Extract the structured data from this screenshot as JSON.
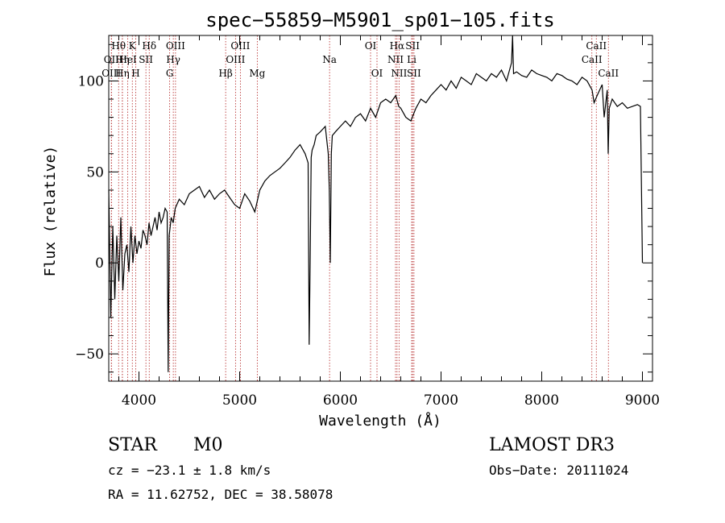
{
  "chart_data": {
    "type": "line",
    "title": "spec−55859−M5901_sp01−105.fits",
    "xlabel": "Wavelength (Å)",
    "ylabel": "Flux (relative)",
    "xlim": [
      3700,
      9100
    ],
    "ylim": [
      -65,
      125
    ],
    "xticks": [
      4000,
      5000,
      6000,
      7000,
      8000,
      9000
    ],
    "yticks": [
      -50,
      0,
      50,
      100
    ],
    "line_color": "#000000",
    "marker_color": "#b22222",
    "series": [
      {
        "name": "flux",
        "x": [
          3700,
          3720,
          3740,
          3760,
          3780,
          3800,
          3820,
          3840,
          3860,
          3880,
          3900,
          3920,
          3940,
          3960,
          3980,
          4000,
          4020,
          4040,
          4060,
          4080,
          4100,
          4120,
          4140,
          4160,
          4180,
          4200,
          4220,
          4240,
          4260,
          4280,
          4290,
          4300,
          4310,
          4320,
          4340,
          4360,
          4400,
          4450,
          4500,
          4550,
          4600,
          4650,
          4700,
          4750,
          4800,
          4850,
          4900,
          4950,
          5000,
          5050,
          5100,
          5150,
          5200,
          5250,
          5300,
          5350,
          5400,
          5450,
          5500,
          5550,
          5600,
          5650,
          5680,
          5690,
          5700,
          5710,
          5720,
          5740,
          5760,
          5800,
          5850,
          5880,
          5890,
          5900,
          5910,
          5920,
          5950,
          6000,
          6050,
          6100,
          6150,
          6200,
          6250,
          6300,
          6350,
          6400,
          6450,
          6500,
          6550,
          6560,
          6580,
          6600,
          6650,
          6700,
          6750,
          6800,
          6850,
          6900,
          6950,
          7000,
          7050,
          7100,
          7150,
          7200,
          7250,
          7300,
          7350,
          7400,
          7450,
          7500,
          7550,
          7600,
          7650,
          7700,
          7710,
          7720,
          7750,
          7800,
          7850,
          7900,
          7950,
          8000,
          8050,
          8100,
          8150,
          8200,
          8250,
          8300,
          8350,
          8400,
          8450,
          8500,
          8520,
          8550,
          8600,
          8620,
          8650,
          8660,
          8670,
          8700,
          8750,
          8800,
          8850,
          8900,
          8950,
          8980,
          9000
        ],
        "y": [
          40,
          -30,
          20,
          -20,
          15,
          -10,
          25,
          -15,
          5,
          10,
          -5,
          20,
          0,
          15,
          5,
          12,
          8,
          18,
          15,
          10,
          22,
          15,
          20,
          25,
          18,
          28,
          22,
          25,
          30,
          28,
          -60,
          15,
          20,
          25,
          22,
          30,
          35,
          32,
          38,
          40,
          42,
          36,
          40,
          35,
          38,
          40,
          36,
          32,
          30,
          38,
          34,
          28,
          40,
          45,
          48,
          50,
          52,
          55,
          58,
          62,
          65,
          60,
          55,
          -45,
          0,
          58,
          62,
          65,
          70,
          72,
          75,
          60,
          40,
          0,
          60,
          70,
          72,
          75,
          78,
          75,
          80,
          82,
          78,
          85,
          80,
          88,
          90,
          88,
          92,
          90,
          86,
          85,
          80,
          78,
          85,
          90,
          88,
          92,
          95,
          98,
          95,
          100,
          96,
          102,
          100,
          98,
          104,
          102,
          100,
          104,
          102,
          106,
          100,
          110,
          125,
          104,
          105,
          103,
          102,
          106,
          104,
          103,
          102,
          100,
          104,
          103,
          101,
          100,
          98,
          102,
          100,
          95,
          88,
          92,
          98,
          80,
          95,
          60,
          85,
          90,
          86,
          88,
          85,
          86,
          87,
          86,
          0
        ]
      }
    ],
    "spectral_lines": [
      {
        "label": "Hθ",
        "wavelength": 3798,
        "row": 0
      },
      {
        "label": "OII",
        "wavelength": 3727,
        "row": 1
      },
      {
        "label": "OIII",
        "wavelength": 3726,
        "row": 2
      },
      {
        "label": "Hη",
        "wavelength": 3835,
        "row": 1
      },
      {
        "label": "Hη",
        "wavelength": 3835,
        "row": 2
      },
      {
        "label": "K",
        "wavelength": 3934,
        "row": 0
      },
      {
        "label": "HeI",
        "wavelength": 3889,
        "row": 1
      },
      {
        "label": "H",
        "wavelength": 3968,
        "row": 2
      },
      {
        "label": "SII",
        "wavelength": 4069,
        "row": 1
      },
      {
        "label": "Hδ",
        "wavelength": 4102,
        "row": 0
      },
      {
        "label": "OIII",
        "wavelength": 4363,
        "row": 0
      },
      {
        "label": "Hγ",
        "wavelength": 4341,
        "row": 1
      },
      {
        "label": "G",
        "wavelength": 4305,
        "row": 2
      },
      {
        "label": "Hβ",
        "wavelength": 4861,
        "row": 2
      },
      {
        "label": "OIII",
        "wavelength": 5007,
        "row": 0
      },
      {
        "label": "OIII",
        "wavelength": 4959,
        "row": 1
      },
      {
        "label": "Mg",
        "wavelength": 5175,
        "row": 2
      },
      {
        "label": "Na",
        "wavelength": 5893,
        "row": 1
      },
      {
        "label": "OI",
        "wavelength": 6300,
        "row": 0
      },
      {
        "label": "OI",
        "wavelength": 6364,
        "row": 2
      },
      {
        "label": "Hα",
        "wavelength": 6563,
        "row": 0
      },
      {
        "label": "NII",
        "wavelength": 6548,
        "row": 1
      },
      {
        "label": "NII",
        "wavelength": 6583,
        "row": 2
      },
      {
        "label": "SII",
        "wavelength": 6717,
        "row": 0
      },
      {
        "label": "Li",
        "wavelength": 6708,
        "row": 1
      },
      {
        "label": "SII",
        "wavelength": 6731,
        "row": 2
      },
      {
        "label": "CaII",
        "wavelength": 8542,
        "row": 0
      },
      {
        "label": "CaII",
        "wavelength": 8498,
        "row": 1
      },
      {
        "label": "CaII",
        "wavelength": 8662,
        "row": 2
      }
    ]
  },
  "info": {
    "class": "STAR",
    "subclass": "M0",
    "survey": "LAMOST DR3",
    "cz": "cz = −23.1 ± 1.8 km/s",
    "obs_date": "Obs−Date: 20111024",
    "coords": "RA =  11.62752, DEC =  38.58078"
  }
}
